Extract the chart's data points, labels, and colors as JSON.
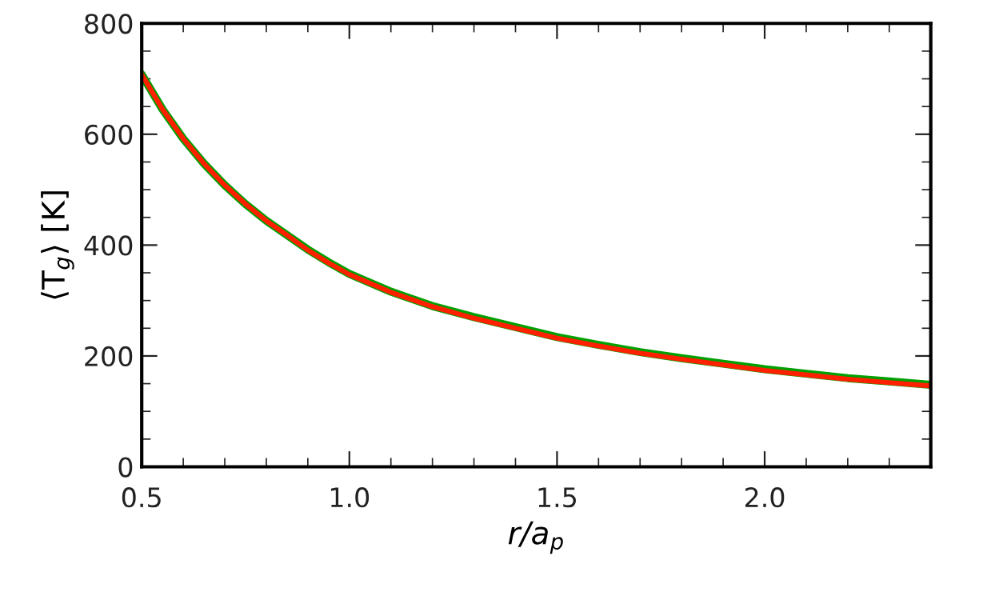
{
  "chart_data": {
    "type": "line",
    "xlabel": "r/a$_{p}$",
    "ylabel": "⟨T$_{g}$⟩ [K]",
    "x": [
      0.5,
      0.55,
      0.6,
      0.65,
      0.7,
      0.75,
      0.8,
      0.85,
      0.9,
      0.95,
      1.0,
      1.1,
      1.2,
      1.3,
      1.4,
      1.5,
      1.6,
      1.7,
      1.8,
      1.9,
      2.0,
      2.1,
      2.2,
      2.3,
      2.4
    ],
    "series": [
      {
        "color": "#00a000",
        "values": [
          708,
          645,
          592,
          547,
          508,
          474,
          444,
          418,
          392,
          369,
          348,
          316,
          290,
          270,
          252,
          234,
          220,
          207,
          196,
          186,
          176,
          168,
          160,
          154,
          148
        ]
      },
      {
        "color": "#ff2000",
        "values": [
          708,
          645,
          592,
          547,
          508,
          474,
          444,
          418,
          391,
          368,
          347,
          315,
          289,
          268,
          250,
          232,
          218,
          205,
          194,
          184,
          174,
          166,
          158,
          152,
          146
        ]
      }
    ],
    "xlim": [
      0.5,
      2.4
    ],
    "xticks": [
      {
        "value": 0.5,
        "label": "0.5"
      },
      {
        "value": 1.0,
        "label": "1.0"
      },
      {
        "value": 1.5,
        "label": "1.5"
      },
      {
        "value": 2.0,
        "label": "2.0"
      }
    ],
    "ylim": [
      0,
      800
    ],
    "yticks": [
      0,
      200,
      400,
      600,
      800
    ],
    "grid": false
  }
}
